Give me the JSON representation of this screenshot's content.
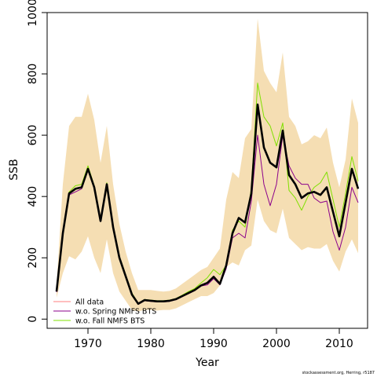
{
  "chart_data": {
    "type": "line",
    "xlabel": "Year",
    "ylabel": "SSB",
    "xlim": [
      1963.5,
      2014.5
    ],
    "ylim": [
      -30,
      1000
    ],
    "x_ticks": [
      1970,
      1980,
      1990,
      2000,
      2010
    ],
    "y_ticks": [
      0,
      200,
      400,
      600,
      800,
      1000
    ],
    "legend_position": "bottom-left",
    "x": [
      1965,
      1966,
      1967,
      1968,
      1969,
      1970,
      1971,
      1972,
      1973,
      1974,
      1975,
      1976,
      1977,
      1978,
      1979,
      1980,
      1981,
      1982,
      1983,
      1984,
      1985,
      1986,
      1987,
      1988,
      1989,
      1990,
      1991,
      1992,
      1993,
      1994,
      1995,
      1996,
      1997,
      1998,
      1999,
      2000,
      2001,
      2002,
      2003,
      2004,
      2005,
      2006,
      2007,
      2008,
      2009,
      2010,
      2011,
      2012,
      2013
    ],
    "band": {
      "color": "#f5deb3",
      "lower": [
        70,
        150,
        205,
        195,
        220,
        270,
        200,
        150,
        260,
        150,
        90,
        60,
        30,
        25,
        30,
        30,
        28,
        30,
        30,
        35,
        45,
        55,
        65,
        75,
        75,
        85,
        110,
        170,
        185,
        175,
        225,
        240,
        390,
        320,
        290,
        280,
        360,
        265,
        245,
        225,
        235,
        230,
        230,
        245,
        190,
        155,
        220,
        260,
        215
      ],
      "upper": [
        110,
        440,
        630,
        660,
        660,
        735,
        650,
        510,
        630,
        440,
        310,
        220,
        150,
        95,
        95,
        95,
        92,
        90,
        92,
        100,
        115,
        130,
        145,
        160,
        170,
        200,
        230,
        390,
        480,
        460,
        590,
        620,
        980,
        810,
        770,
        740,
        870,
        660,
        630,
        570,
        580,
        600,
        590,
        625,
        510,
        430,
        520,
        720,
        640
      ]
    },
    "series": [
      {
        "name": "All data",
        "color": "#000000",
        "values": [
          90,
          280,
          410,
          425,
          430,
          490,
          430,
          320,
          440,
          300,
          200,
          140,
          80,
          50,
          62,
          60,
          58,
          58,
          60,
          65,
          75,
          85,
          95,
          110,
          118,
          138,
          115,
          175,
          280,
          330,
          315,
          410,
          700,
          560,
          510,
          495,
          615,
          470,
          440,
          395,
          410,
          415,
          405,
          430,
          350,
          270,
          380,
          490,
          425
        ]
      },
      {
        "name": "w.o. Spring NMFS BTS",
        "color": "#8b008b",
        "values": [
          88,
          275,
          405,
          415,
          425,
          488,
          425,
          318,
          438,
          298,
          198,
          138,
          78,
          48,
          60,
          58,
          56,
          56,
          58,
          63,
          73,
          83,
          93,
          108,
          112,
          132,
          112,
          165,
          265,
          280,
          265,
          385,
          600,
          440,
          370,
          440,
          600,
          500,
          460,
          440,
          440,
          395,
          380,
          385,
          285,
          225,
          300,
          430,
          380
        ]
      },
      {
        "name": "w.o. Fall NMFS BTS",
        "color": "#7fe000",
        "values": [
          92,
          285,
          415,
          435,
          440,
          500,
          435,
          325,
          445,
          305,
          205,
          145,
          85,
          52,
          64,
          62,
          60,
          60,
          62,
          67,
          78,
          90,
          100,
          118,
          135,
          162,
          145,
          175,
          290,
          320,
          300,
          425,
          770,
          660,
          630,
          565,
          640,
          420,
          395,
          355,
          400,
          430,
          445,
          480,
          390,
          300,
          410,
          530,
          450
        ]
      }
    ]
  },
  "footer_note": "stockassessment.org, Herring, r5187"
}
